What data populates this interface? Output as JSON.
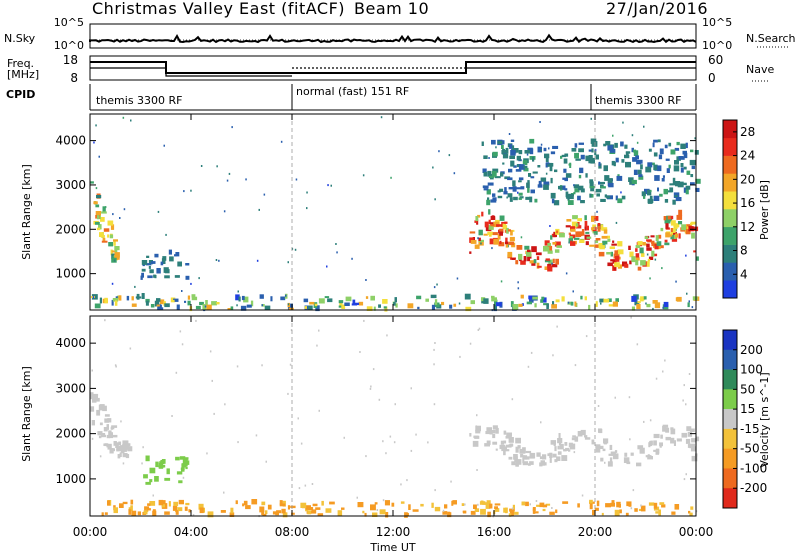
{
  "header": {
    "title": "Christmas Valley East (fitACF)",
    "beam": "Beam 10",
    "date": "27/Jan/2016"
  },
  "left_labels": {
    "nsky": "N.Sky",
    "freq_line1": "Freq.",
    "freq_line2": "[MHz]",
    "cpid": "CPID"
  },
  "right_labels": {
    "nsearch": "N.Search",
    "nave": "Nave"
  },
  "nsky_panel": {
    "left_ticks": [
      "10^5",
      "10^0"
    ],
    "right_ticks": [
      "10^5",
      "10^0"
    ]
  },
  "freq_panel": {
    "left_ticks": [
      "18",
      "8"
    ],
    "right_ticks": [
      "60",
      "0"
    ]
  },
  "cpid_panel": {
    "segments": [
      {
        "label": "themis 3300 RF",
        "start_hour": 0,
        "end_hour": 8
      },
      {
        "label": "normal (fast) 151 RF",
        "start_hour": 8,
        "end_hour": 20
      },
      {
        "label": "themis 3300 RF",
        "start_hour": 20,
        "end_hour": 24
      }
    ]
  },
  "time_axis": {
    "label": "Time UT",
    "ticks": [
      "00:00",
      "04:00",
      "08:00",
      "12:00",
      "16:00",
      "20:00",
      "00:00"
    ]
  },
  "chart_data": [
    {
      "type": "heatmap",
      "quantity": "power",
      "ylabel": "Slant Range [km]",
      "yticks": [
        "1000",
        "2000",
        "3000",
        "4000"
      ],
      "ylim": [
        180,
        4600
      ],
      "xlim_hours": [
        0,
        24
      ],
      "colorbar": {
        "label": "Power [dB]",
        "ticks": [
          "4",
          "8",
          "12",
          "16",
          "20",
          "24",
          "28"
        ],
        "range": [
          0,
          30
        ],
        "colors": [
          "#1f3fe0",
          "#2a5fae",
          "#2d7f7a",
          "#3da36a",
          "#8ed067",
          "#f4df3c",
          "#f3a628",
          "#ee6a20",
          "#e82b1d",
          "#cc1414"
        ]
      },
      "regions": [
        {
          "name": "echo band 00-01 UT",
          "hours": [
            0.0,
            1.0
          ],
          "range_km": [
            1300,
            3100
          ],
          "power_db": [
            6,
            22
          ]
        },
        {
          "name": "echo patch 02-04 UT",
          "hours": [
            2.0,
            4.0
          ],
          "range_km": [
            900,
            1500
          ],
          "power_db": [
            3,
            9
          ]
        },
        {
          "name": "near-range ground scatter",
          "hours": [
            0.0,
            24.0
          ],
          "range_km": [
            200,
            500
          ],
          "power_db": [
            2,
            20
          ]
        },
        {
          "name": "main echo band 15-24 UT",
          "hours": [
            15.0,
            24.0
          ],
          "range_km": [
            1100,
            2400
          ],
          "power_db": [
            10,
            30
          ]
        },
        {
          "name": "upper scatter 15-24 UT",
          "hours": [
            15.5,
            24.0
          ],
          "range_km": [
            2600,
            4000
          ],
          "power_db": [
            4,
            10
          ]
        }
      ]
    },
    {
      "type": "heatmap",
      "quantity": "velocity",
      "ylabel": "Slant Range [km]",
      "yticks": [
        "1000",
        "2000",
        "3000",
        "4000"
      ],
      "ylim": [
        180,
        4600
      ],
      "xlim_hours": [
        0,
        24
      ],
      "colorbar": {
        "label": "Velocity [m s^-1]",
        "ticks": [
          "200",
          "100",
          "50",
          "15",
          "-15",
          "-50",
          "-100",
          "-200"
        ],
        "colors": [
          "#1a34c2",
          "#2a5fae",
          "#2f8a5a",
          "#7ccc4a",
          "#c8c8c8",
          "#f3c23a",
          "#f59b23",
          "#ee6a20",
          "#e02a1c"
        ]
      },
      "regions": [
        {
          "name": "echo band 00-01 UT",
          "hours": [
            0.0,
            1.5
          ],
          "range_km": [
            1500,
            3100
          ],
          "velocity_ms": [
            -15,
            15
          ]
        },
        {
          "name": "positive patch 02-04 UT",
          "hours": [
            2.0,
            3.8
          ],
          "range_km": [
            900,
            1500
          ],
          "velocity_ms": [
            15,
            50
          ]
        },
        {
          "name": "near-range band",
          "hours": [
            0.0,
            24.0
          ],
          "range_km": [
            200,
            500
          ],
          "velocity_ms": [
            -100,
            -15
          ]
        },
        {
          "name": "main band 15-24 UT",
          "hours": [
            15.0,
            24.0
          ],
          "range_km": [
            1300,
            2200
          ],
          "velocity_ms": [
            -15,
            15
          ]
        }
      ]
    }
  ]
}
